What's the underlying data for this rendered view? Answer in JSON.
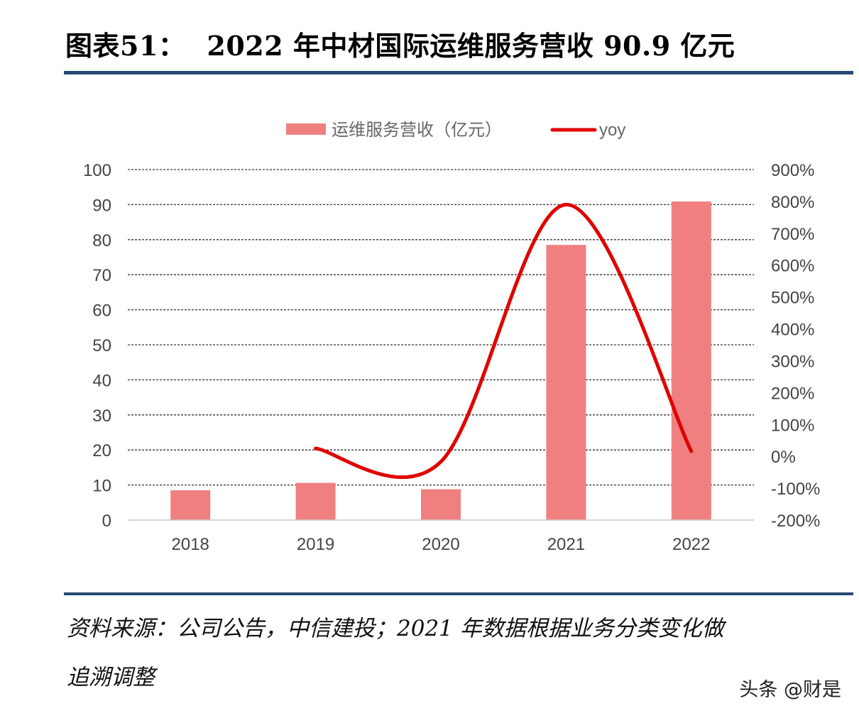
{
  "figure": {
    "label": "图表51：",
    "title": "2022 年中材国际运维服务营收 90.9 亿元"
  },
  "chart_data": {
    "type": "bar+line",
    "categories": [
      "2018",
      "2019",
      "2020",
      "2021",
      "2022"
    ],
    "series": [
      {
        "name": "运维服务营收（亿元）",
        "type": "bar",
        "axis": "left",
        "color": "#f08080",
        "values": [
          8.5,
          10.6,
          8.8,
          78.5,
          90.9
        ]
      },
      {
        "name": "yoy",
        "type": "line",
        "axis": "right",
        "color": "#e00000",
        "smooth": true,
        "values": [
          null,
          0.25,
          -0.17,
          7.9,
          0.16
        ]
      }
    ],
    "y_left": {
      "ylim": [
        0,
        100
      ],
      "ticks": [
        0,
        10,
        20,
        30,
        40,
        50,
        60,
        70,
        80,
        90,
        100
      ],
      "tick_labels": [
        "0",
        "10",
        "20",
        "30",
        "40",
        "50",
        "60",
        "70",
        "80",
        "90",
        "100"
      ]
    },
    "y_right": {
      "ylim": [
        -2,
        9
      ],
      "ticks": [
        -2,
        -1,
        0,
        1,
        2,
        3,
        4,
        5,
        6,
        7,
        8,
        9
      ],
      "tick_labels": [
        "-200%",
        "-100%",
        "0%",
        "100%",
        "200%",
        "300%",
        "400%",
        "500%",
        "600%",
        "700%",
        "800%",
        "900%"
      ]
    },
    "grid": true,
    "legend": "top-center"
  },
  "source": {
    "line1": "资料来源：公司公告，中信建投；2021 年数据根据业务分类变化做",
    "line2": "追溯调整"
  },
  "watermark": "头条 @财是"
}
